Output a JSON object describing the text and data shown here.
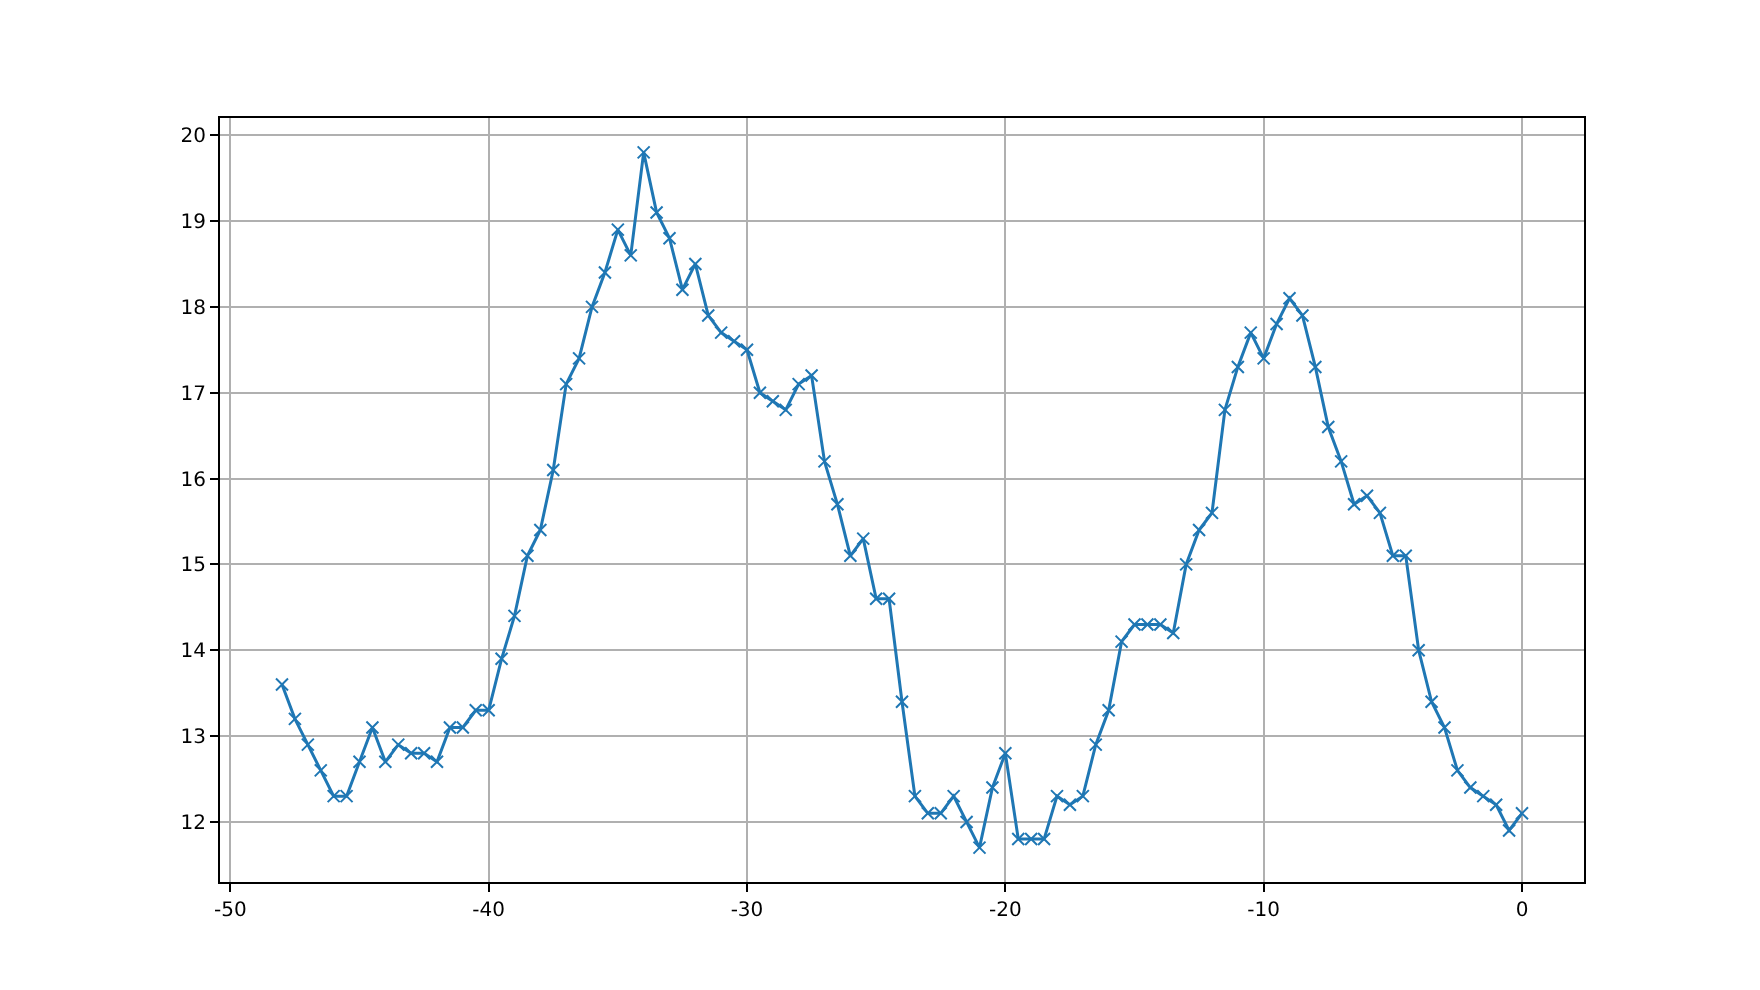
{
  "chart_data": {
    "type": "line",
    "x": [
      -48,
      -47.5,
      -47,
      -46.5,
      -46,
      -45.5,
      -45,
      -44.5,
      -44,
      -43.5,
      -43,
      -42.5,
      -42,
      -41.5,
      -41,
      -40.5,
      -40,
      -39.5,
      -39,
      -38.5,
      -38,
      -37.5,
      -37,
      -36.5,
      -36,
      -35.5,
      -35,
      -34.5,
      -34,
      -33.5,
      -33,
      -32.5,
      -32,
      -31.5,
      -31,
      -30.5,
      -30,
      -29.5,
      -29,
      -28.5,
      -28,
      -27.5,
      -27,
      -26.5,
      -26,
      -25.5,
      -25,
      -24.5,
      -24,
      -23.5,
      -23,
      -22.5,
      -22,
      -21.5,
      -21,
      -20.5,
      -20,
      -19.5,
      -19,
      -18.5,
      -18,
      -17.5,
      -17,
      -16.5,
      -16,
      -15.5,
      -15,
      -14.5,
      -14,
      -13.5,
      -13,
      -12.5,
      -12,
      -11.5,
      -11,
      -10.5,
      -10,
      -9.5,
      -9,
      -8.5,
      -8,
      -7.5,
      -7,
      -6.5,
      -6,
      -5.5,
      -5,
      -4.5,
      -4,
      -3.5,
      -3,
      -2.5,
      -2,
      -1.5,
      -1,
      -0.5,
      0
    ],
    "series": [
      {
        "color": "#1f77b4",
        "values": [
          13.6,
          13.2,
          12.9,
          12.6,
          12.3,
          12.3,
          12.7,
          13.1,
          12.7,
          12.9,
          12.8,
          12.8,
          12.7,
          13.1,
          13.1,
          13.3,
          13.3,
          13.9,
          14.4,
          15.1,
          15.4,
          16.1,
          17.1,
          17.4,
          18.0,
          18.4,
          18.9,
          18.6,
          19.8,
          19.1,
          18.8,
          18.2,
          18.5,
          17.9,
          17.7,
          17.6,
          17.5,
          17.0,
          16.9,
          16.8,
          17.1,
          17.2,
          16.2,
          15.7,
          15.1,
          15.3,
          14.6,
          14.6,
          13.4,
          12.3,
          12.1,
          12.1,
          12.3,
          12.0,
          11.7,
          12.4,
          12.8,
          11.8,
          11.8,
          11.8,
          12.3,
          12.2,
          12.3,
          12.9,
          13.3,
          14.1,
          14.3,
          14.3,
          14.3,
          14.2,
          15.0,
          15.4,
          15.6,
          16.8,
          17.3,
          17.7,
          17.4,
          17.8,
          18.1,
          17.9,
          17.3,
          16.6,
          16.2,
          15.7,
          15.8,
          15.6,
          15.1,
          15.1,
          14.0,
          13.4,
          13.1,
          12.6,
          12.4,
          12.3,
          12.2,
          11.9,
          12.1
        ]
      }
    ],
    "xlim": [
      -50.4,
      2.4
    ],
    "ylim": [
      11.3,
      20.2
    ],
    "xticks": [
      -50,
      -40,
      -30,
      -20,
      -10,
      0
    ],
    "yticks": [
      12,
      13,
      14,
      15,
      16,
      17,
      18,
      19,
      20
    ],
    "grid": true,
    "marker": "cross",
    "line_style": "solid"
  }
}
